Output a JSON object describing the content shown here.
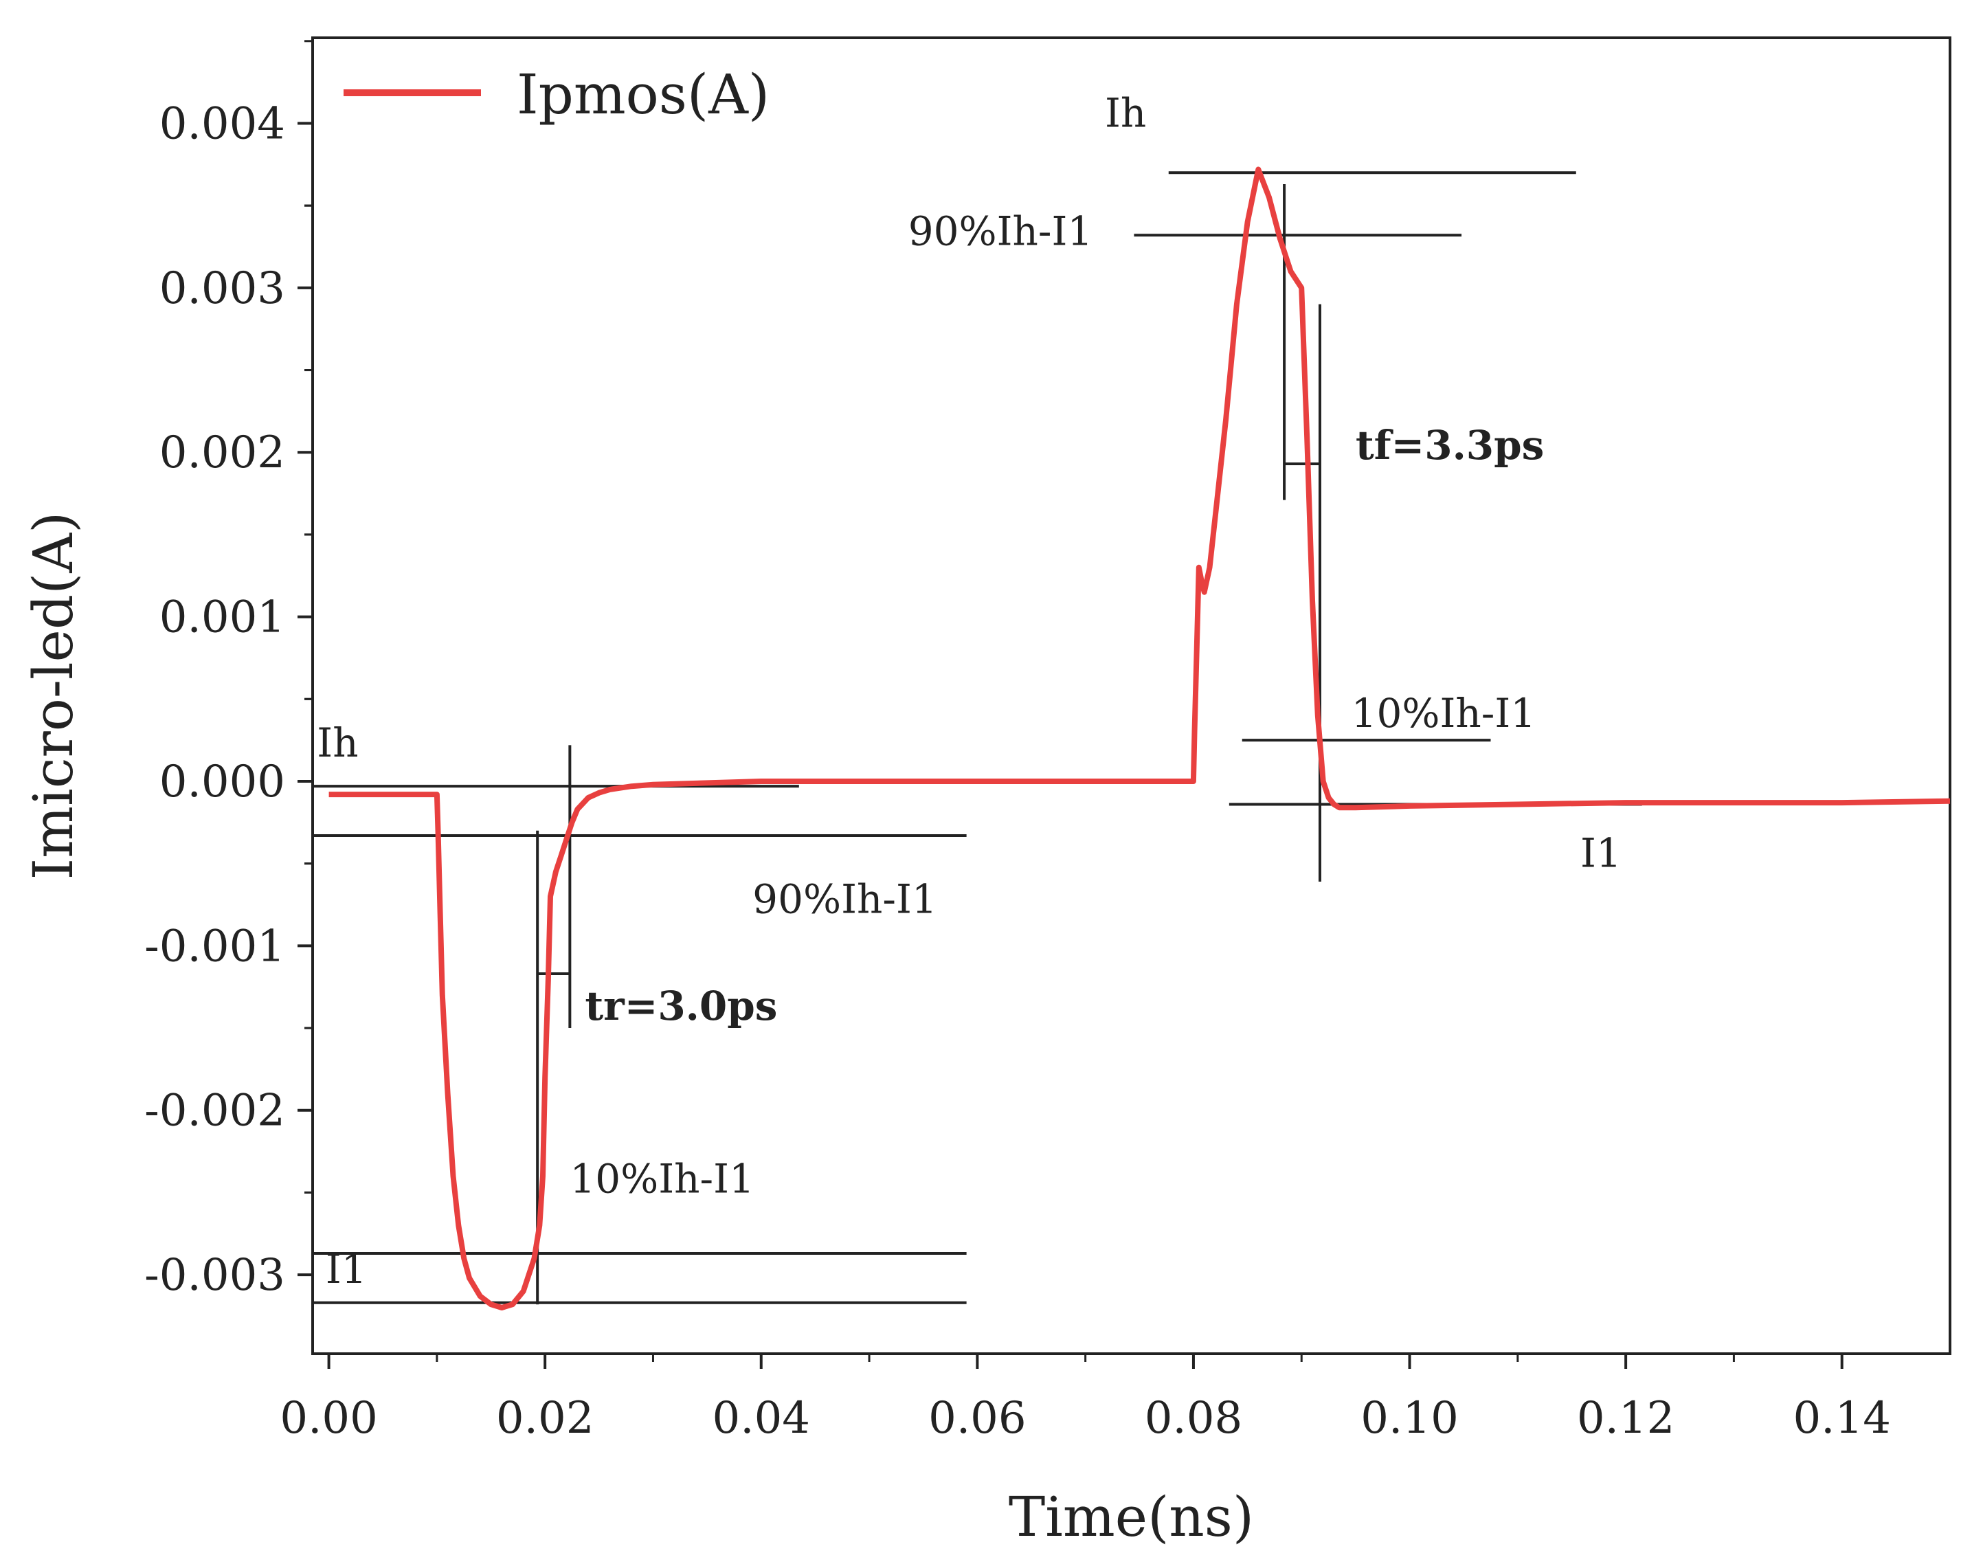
{
  "chart_data": {
    "type": "line",
    "title": "",
    "xlabel": "Time(ns)",
    "ylabel": "Imicro-led(A)",
    "xlim": [
      -0.0015,
      0.15
    ],
    "ylim": [
      -0.00348,
      0.00452
    ],
    "x_ticks": [
      0.0,
      0.02,
      0.04,
      0.06,
      0.08,
      0.1,
      0.12,
      0.14
    ],
    "x_tick_labels": [
      "0.00",
      "0.02",
      "0.04",
      "0.06",
      "0.08",
      "0.10",
      "0.12",
      "0.14"
    ],
    "y_ticks": [
      -0.003,
      -0.002,
      -0.001,
      0.0,
      0.001,
      0.002,
      0.003,
      0.004
    ],
    "y_tick_labels": [
      "-0.003",
      "-0.002",
      "-0.001",
      "0.000",
      "0.001",
      "0.002",
      "0.003",
      "0.004"
    ],
    "grid": false,
    "legend_position": "top-left",
    "series": [
      {
        "name": "Ipmos(A)",
        "color": "#e8403f",
        "x": [
          0.0,
          0.01,
          0.0101,
          0.0103,
          0.0105,
          0.011,
          0.0115,
          0.012,
          0.0125,
          0.013,
          0.014,
          0.015,
          0.016,
          0.017,
          0.018,
          0.019,
          0.0195,
          0.0198,
          0.02,
          0.0203,
          0.0205,
          0.021,
          0.0215,
          0.022,
          0.0225,
          0.023,
          0.024,
          0.025,
          0.026,
          0.028,
          0.03,
          0.035,
          0.04,
          0.05,
          0.06,
          0.07,
          0.079,
          0.08,
          0.0801,
          0.0803,
          0.0805,
          0.0808,
          0.081,
          0.0815,
          0.082,
          0.083,
          0.084,
          0.085,
          0.086,
          0.087,
          0.088,
          0.089,
          0.09,
          0.0905,
          0.091,
          0.0915,
          0.092,
          0.0925,
          0.093,
          0.0935,
          0.094,
          0.095,
          0.1,
          0.11,
          0.12,
          0.13,
          0.14,
          0.15
        ],
        "values": [
          -8e-05,
          -8e-05,
          -0.0003,
          -0.0008,
          -0.0013,
          -0.0019,
          -0.0024,
          -0.0027,
          -0.0029,
          -0.00302,
          -0.00313,
          -0.00318,
          -0.0032,
          -0.00318,
          -0.0031,
          -0.0029,
          -0.0027,
          -0.0024,
          -0.0018,
          -0.0012,
          -0.0007,
          -0.00055,
          -0.00045,
          -0.00035,
          -0.00025,
          -0.00017,
          -0.0001,
          -7e-05,
          -5e-05,
          -3e-05,
          -2e-05,
          -1e-05,
          0.0,
          0.0,
          0.0,
          0.0,
          0.0,
          0.0,
          0.0003,
          0.0008,
          0.0013,
          0.0012,
          0.00115,
          0.0013,
          0.0016,
          0.0022,
          0.0029,
          0.0034,
          0.00372,
          0.00355,
          0.0033,
          0.0031,
          0.003,
          0.0021,
          0.0011,
          0.0004,
          0.0,
          -0.0001,
          -0.00014,
          -0.00016,
          -0.00016,
          -0.00016,
          -0.00015,
          -0.00014,
          -0.00013,
          -0.00013,
          -0.00013,
          -0.00012
        ]
      }
    ],
    "annotations": {
      "rise": {
        "ih_label": "Ih",
        "p90_label": "90%Ih-I1",
        "p10_label": "10%Ih-I1",
        "il_label": "I1",
        "time_label": "tr=3.0ps",
        "ih": -3e-05,
        "p90": -0.00033,
        "p10": -0.00287,
        "il": -0.00317,
        "t_start": 0.0193,
        "t_end": 0.0223
      },
      "fall": {
        "ih_label": "Ih",
        "p90_label": "90%Ih-I1",
        "p10_label": "10%Ih-I1",
        "il_label": "I1",
        "time_label": "tf=3.3ps",
        "ih": 0.0037,
        "p90": 0.00332,
        "p10": 0.00025,
        "il": -0.00014,
        "t_start": 0.0884,
        "t_end": 0.0917
      }
    }
  }
}
